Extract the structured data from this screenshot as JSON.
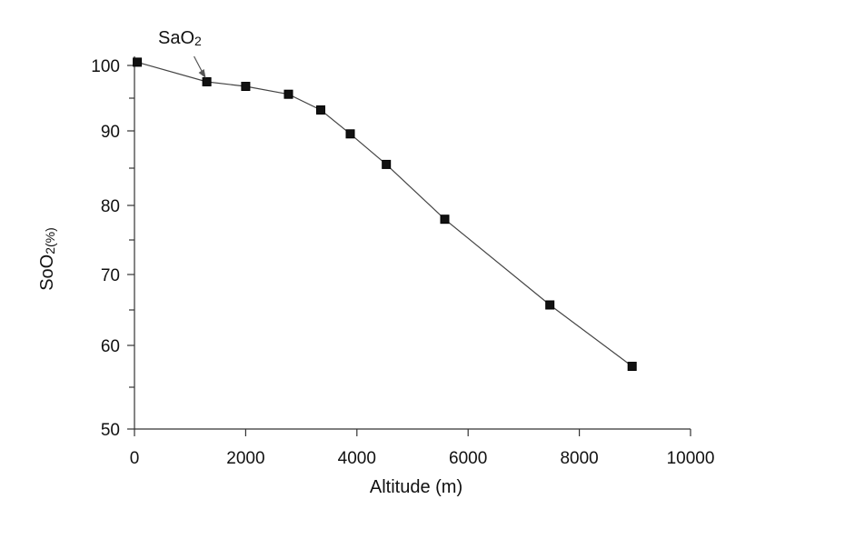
{
  "chart_data": {
    "type": "line",
    "title": "",
    "xlabel": "Altitude (m)",
    "ylabel": "SoO",
    "ylabel_sub": "2(%)",
    "xlim": [
      0,
      10000
    ],
    "ylim": [
      50,
      100
    ],
    "x_ticks": [
      0,
      2000,
      4000,
      6000,
      8000,
      10000
    ],
    "y_tick_labels": [
      {
        "value": 100,
        "label": "100"
      },
      {
        "value": 90,
        "label": "90"
      },
      {
        "value": 80,
        "label": "80"
      },
      {
        "value": 70,
        "label": "70"
      },
      {
        "value": 60,
        "label": "60"
      },
      {
        "value": 50,
        "label": "50"
      }
    ],
    "y_minor_ticks": [
      95,
      85,
      75,
      65,
      55
    ],
    "grid": false,
    "annotation": {
      "text": "SaO",
      "sub": "2",
      "target_index": 1
    },
    "series": [
      {
        "x": [
          50,
          1300,
          2000,
          2770,
          3350,
          3880,
          4530,
          5580,
          7470,
          8950
        ],
        "y": [
          100.5,
          97.5,
          96.8,
          95.6,
          93.2,
          89.6,
          85.5,
          78.0,
          65.7,
          57.5
        ]
      }
    ],
    "colors": {
      "marker": "#111111",
      "line": "#444444",
      "axis": "#333333"
    }
  }
}
